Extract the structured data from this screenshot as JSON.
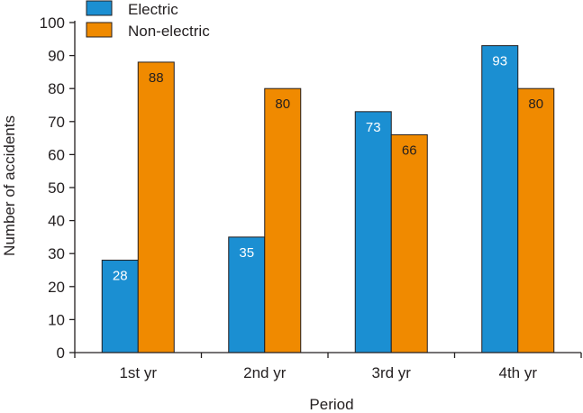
{
  "chart_data": {
    "type": "bar",
    "categories": [
      "1st yr",
      "2nd yr",
      "3rd yr",
      "4th yr"
    ],
    "series": [
      {
        "name": "Electric",
        "values": [
          28,
          35,
          73,
          93
        ],
        "color": "#1b8fd2",
        "label_color": "#ffffff"
      },
      {
        "name": "Non-electric",
        "values": [
          88,
          80,
          66,
          80
        ],
        "color": "#f08a00",
        "label_color": "#231f20"
      }
    ],
    "title": "",
    "xlabel": "Period",
    "ylabel": "Number of accidents",
    "ylim": [
      0,
      100
    ],
    "yticks": [
      0,
      10,
      20,
      30,
      40,
      50,
      60,
      70,
      80,
      90,
      100
    ],
    "grid": false,
    "legend_position": "top-left",
    "axis_color": "#231f20",
    "bar_edge_color": "#231f20"
  }
}
